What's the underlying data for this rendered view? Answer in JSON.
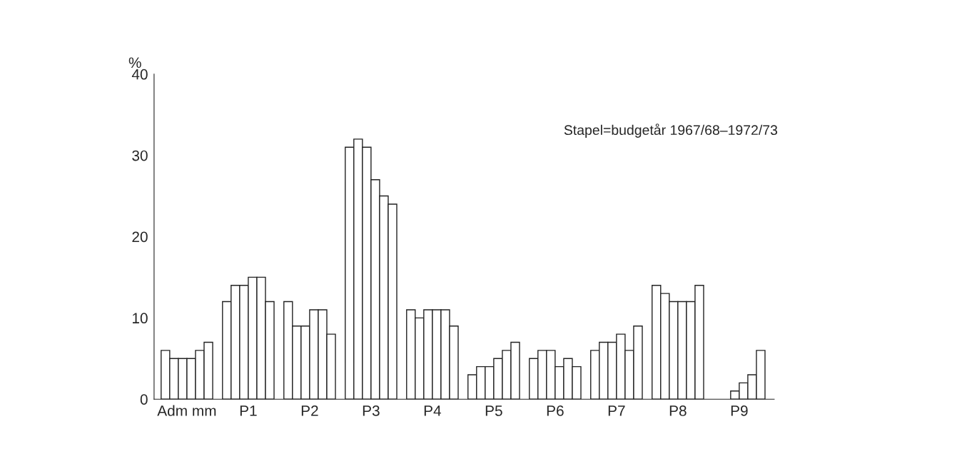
{
  "chart_data": {
    "type": "bar",
    "ylabel": "%",
    "categories": [
      "Adm mm",
      "P1",
      "P2",
      "P3",
      "P4",
      "P5",
      "P6",
      "P7",
      "P8",
      "P9"
    ],
    "series": [
      {
        "color": "#ffffff",
        "values": [
          6,
          12,
          12,
          31,
          11,
          3,
          5,
          6,
          14,
          null
        ]
      },
      {
        "color": "#ffffff",
        "values": [
          5,
          14,
          9,
          32,
          10,
          4,
          6,
          7,
          13,
          null
        ]
      },
      {
        "color": "#ffffff",
        "values": [
          5,
          14,
          9,
          31,
          11,
          4,
          6,
          7,
          12,
          1
        ]
      },
      {
        "color": "#ffffff",
        "values": [
          5,
          15,
          11,
          27,
          11,
          5,
          4,
          8,
          12,
          2
        ]
      },
      {
        "color": "#ffffff",
        "values": [
          6,
          15,
          11,
          25,
          11,
          6,
          5,
          6,
          12,
          3
        ]
      },
      {
        "color": "#ffffff",
        "values": [
          7,
          12,
          8,
          24,
          9,
          7,
          4,
          9,
          14,
          6
        ]
      }
    ],
    "ylim": [
      0,
      40
    ],
    "yticks": [
      0,
      10,
      20,
      30,
      40
    ],
    "grid": false,
    "legend": false,
    "annotations": [
      "Stapel=budgetår 1967/68–1972/73"
    ]
  }
}
